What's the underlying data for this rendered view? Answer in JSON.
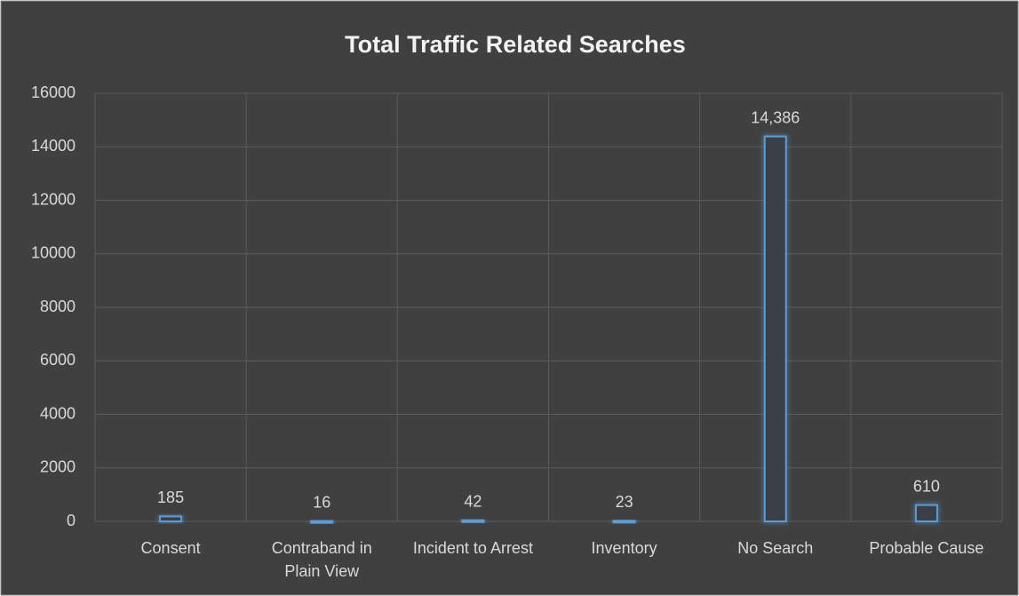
{
  "chart_data": {
    "type": "bar",
    "title": "Total Traffic Related Searches",
    "categories": [
      "Consent",
      "Contraband in Plain View",
      "Incident to Arrest",
      "Inventory",
      "No Search",
      "Probable Cause"
    ],
    "values": [
      185,
      16,
      42,
      23,
      14386,
      610
    ],
    "value_labels": [
      "185",
      "16",
      "42",
      "23",
      "14,386",
      "610"
    ],
    "color": "#5b9bd5",
    "ylim": [
      0,
      16000
    ],
    "yticks": [
      0,
      2000,
      4000,
      6000,
      8000,
      10000,
      12000,
      14000,
      16000
    ],
    "grid": true
  }
}
